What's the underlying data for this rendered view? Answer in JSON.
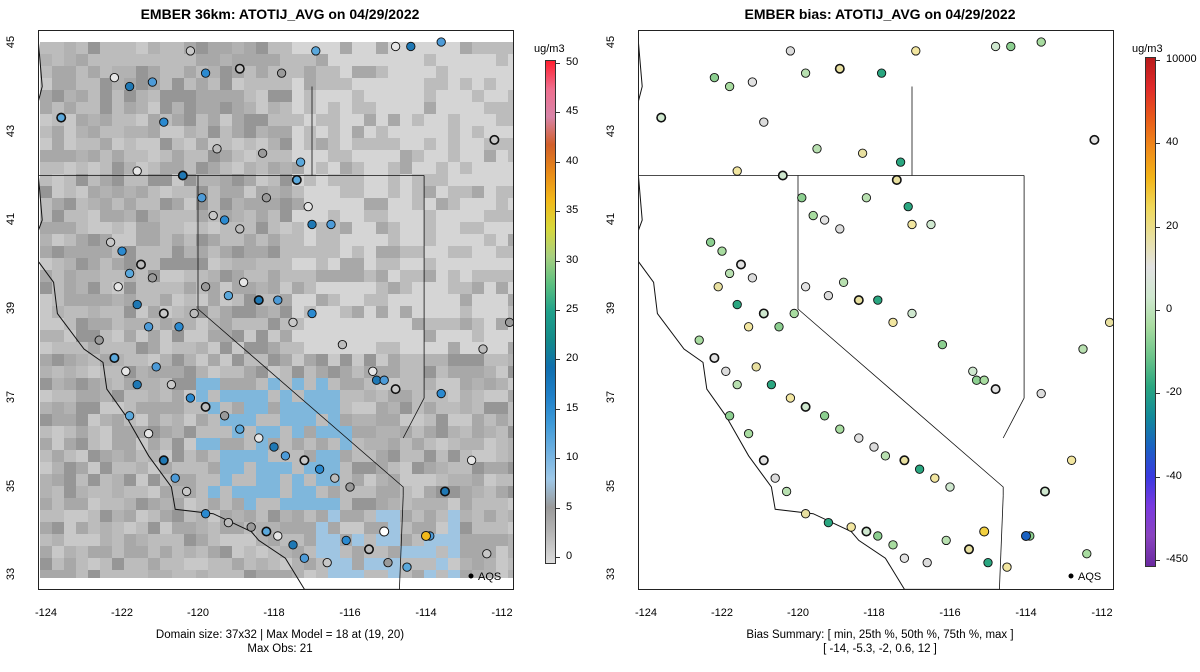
{
  "left": {
    "title": "EMBER 36km: ATOTIJ_AVG on 04/29/2022",
    "y_ticks": [
      "45",
      "43",
      "41",
      "39",
      "37",
      "35",
      "33"
    ],
    "x_ticks": [
      "-124",
      "-122",
      "-120",
      "-118",
      "-116",
      "-114",
      "-112"
    ],
    "footer_line1": "Domain size: 37x32 | Max Model = 18 at (19, 20)",
    "footer_line2": "Max Obs: 21",
    "colorbar": {
      "unit": "ug/m3",
      "labels": [
        "50",
        "45",
        "40",
        "35",
        "30",
        "25",
        "20",
        "15",
        "10",
        "5",
        "0"
      ],
      "colors": [
        "#ff1f2f",
        "#ef6f8f",
        "#d884a8",
        "#d15f2a",
        "#e88a18",
        "#f2b91a",
        "#d8d83a",
        "#a8d080",
        "#5cc080",
        "#1fa08a",
        "#138a8a",
        "#106fae",
        "#2080c8",
        "#3e9ad8",
        "#6fb0e0",
        "#9ec8e8",
        "#9a9a9a",
        "#b8b8b8",
        "#dcdcdc"
      ]
    },
    "annotation": "AQS"
  },
  "right": {
    "title": "EMBER bias: ATOTIJ_AVG on 04/29/2022",
    "y_ticks": [
      "45",
      "43",
      "41",
      "39",
      "37",
      "35",
      "33"
    ],
    "x_ticks": [
      "-124",
      "-122",
      "-120",
      "-118",
      "-116",
      "-114",
      "-112"
    ],
    "footer_line1": "Bias Summary: [ min, 25th %, 50th %, 75th %, max ]",
    "footer_line2": "[ -14,   -5.3,   -2,   0.6,   12 ]",
    "colorbar": {
      "unit": "ug/m3",
      "labels": [
        "10000",
        "40",
        "20",
        "0",
        "-20",
        "-40",
        "-450"
      ],
      "colors": [
        "#b81a1a",
        "#e02a2a",
        "#e85a1a",
        "#f08a1a",
        "#f2b418",
        "#f0d85a",
        "#e8e0a0",
        "#e2e2e2",
        "#cfe8cf",
        "#a8dca0",
        "#6cc48a",
        "#2aa680",
        "#128a9a",
        "#1a62c2",
        "#3a3ae0",
        "#7a3ae0",
        "#8a44c0",
        "#6a2aa0"
      ]
    },
    "annotation": "AQS"
  }
}
